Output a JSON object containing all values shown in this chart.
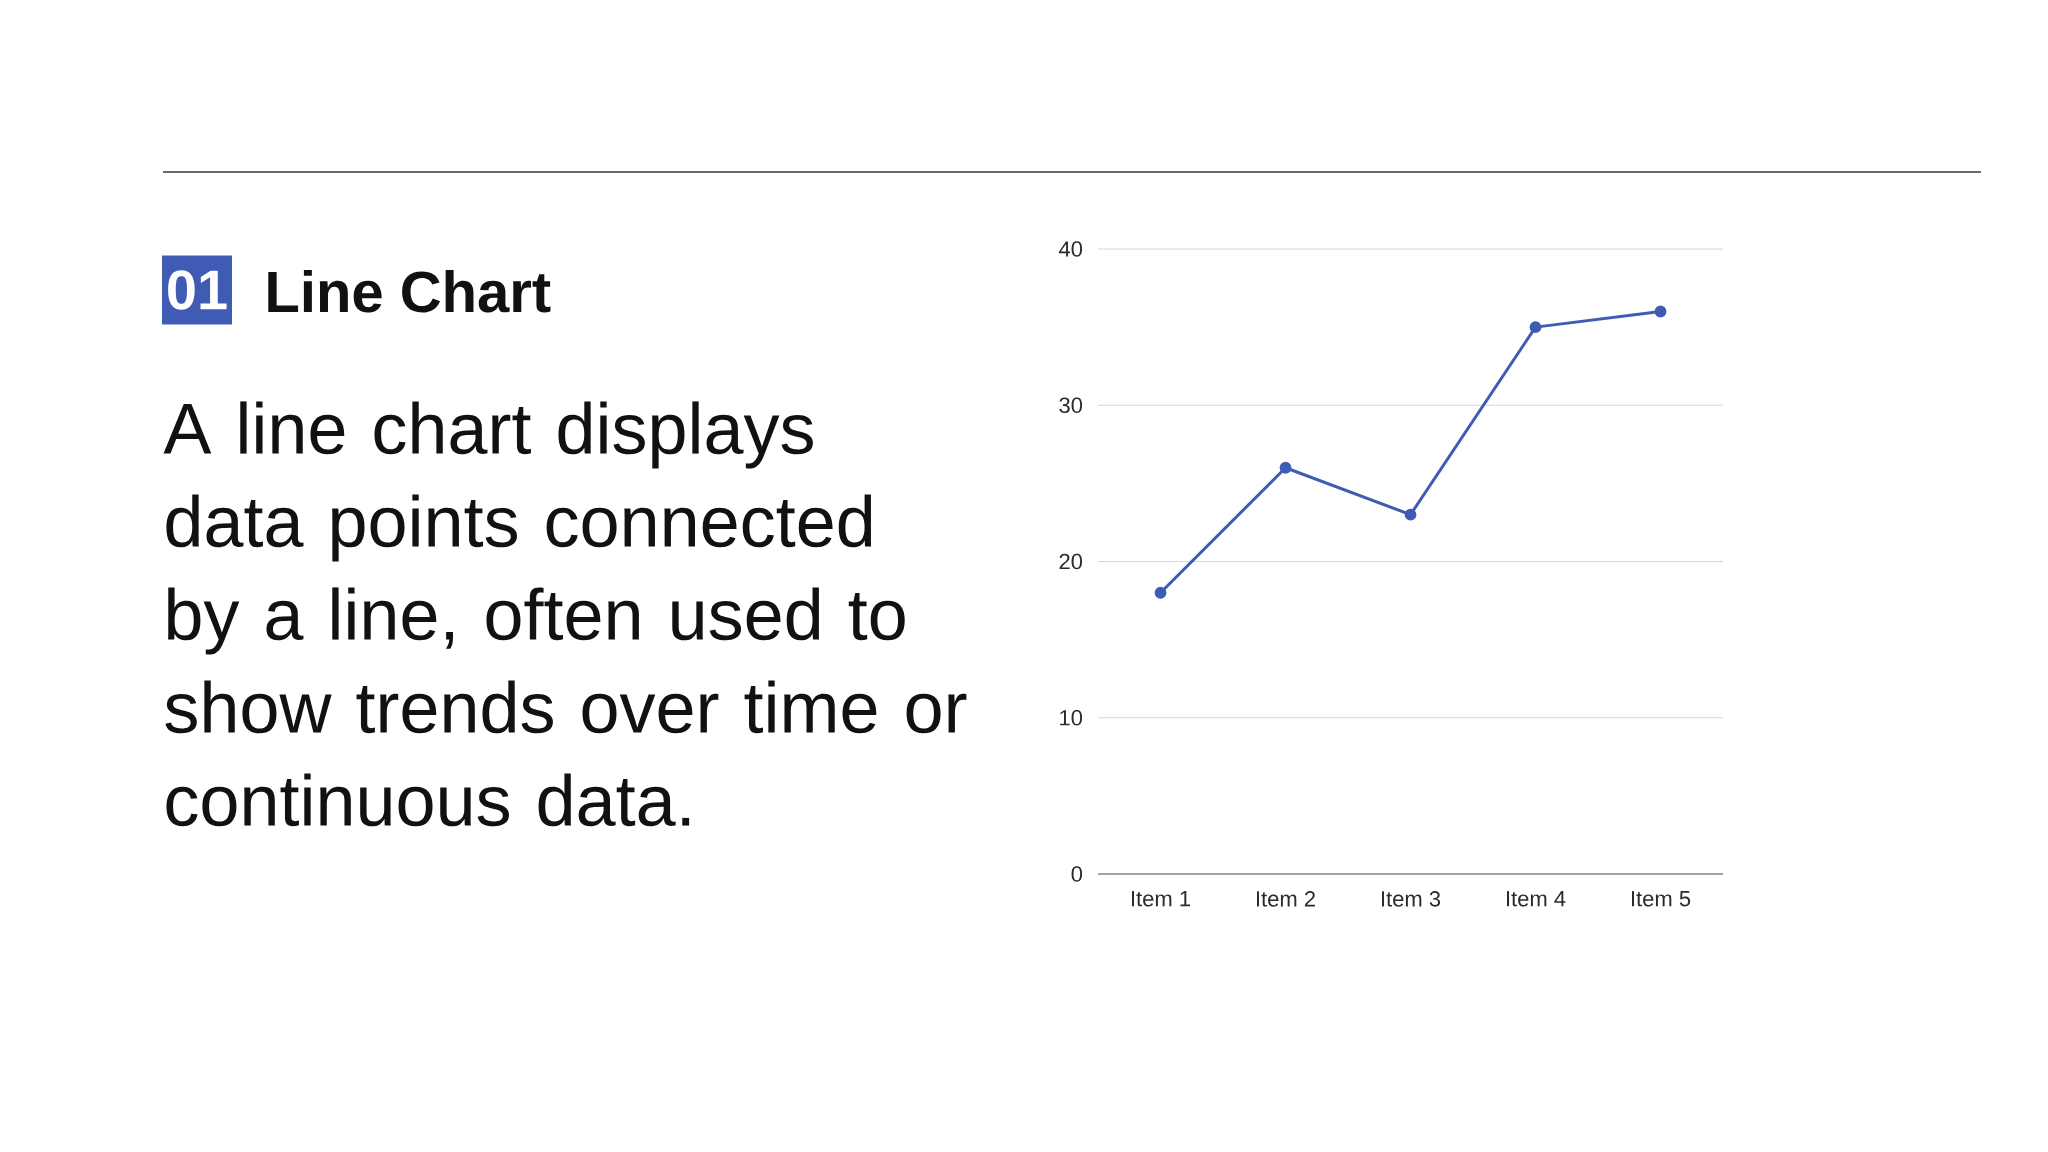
{
  "chart_data": {
    "type": "line",
    "title": "Line Chart",
    "subtitle": "A line chart displays data points connected by a line, often used to show trends over time or continuous data.",
    "annotations": [
      "01"
    ],
    "categories": [
      "Item 1",
      "Item 2",
      "Item 3",
      "Item 4",
      "Item 5"
    ],
    "series": [
      {
        "color": "#3f5bb3",
        "values": [
          18,
          26,
          23,
          35,
          36
        ]
      }
    ],
    "ylim": [
      0,
      40
    ],
    "yticks": [
      0,
      10,
      20,
      30,
      40
    ],
    "grid": "y",
    "marker": "circle",
    "line_style": "solid"
  }
}
